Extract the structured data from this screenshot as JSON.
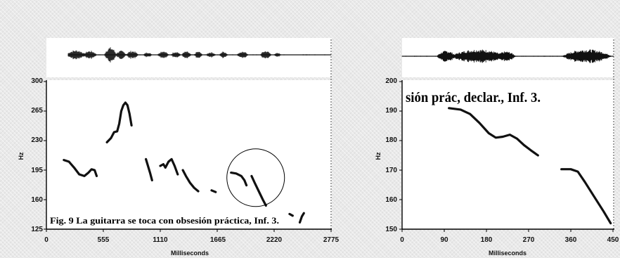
{
  "chart_data": [
    {
      "type": "line",
      "caption": "Fig. 9 La guitarra se toca con obsesión práctica, Inf. 3.",
      "xlabel": "Milliseconds",
      "ylabel": "Hz",
      "xlim": [
        0,
        2775
      ],
      "ylim": [
        125,
        300
      ],
      "xticks": [
        "0",
        "555",
        "1110",
        "1665",
        "2220",
        "2775"
      ],
      "yticks": [
        "300",
        "265",
        "230",
        "195",
        "160",
        "125"
      ],
      "highlight_circle_center_ms": 2040,
      "highlight_circle_center_hz": 186,
      "segments": [
        [
          [
            170,
            207
          ],
          [
            220,
            205
          ],
          [
            270,
            198
          ],
          [
            320,
            190
          ],
          [
            370,
            188
          ],
          [
            410,
            192
          ],
          [
            440,
            196
          ],
          [
            470,
            195
          ],
          [
            490,
            188
          ]
        ],
        [
          [
            590,
            228
          ],
          [
            630,
            233
          ],
          [
            660,
            240
          ],
          [
            690,
            241
          ],
          [
            710,
            250
          ],
          [
            730,
            265
          ],
          [
            750,
            272
          ],
          [
            770,
            275
          ],
          [
            790,
            272
          ],
          [
            810,
            262
          ],
          [
            830,
            248
          ]
        ],
        [
          [
            970,
            208
          ],
          [
            990,
            200
          ],
          [
            1010,
            192
          ],
          [
            1030,
            183
          ]
        ],
        [
          [
            1110,
            200
          ],
          [
            1140,
            202
          ],
          [
            1160,
            198
          ],
          [
            1190,
            205
          ],
          [
            1220,
            208
          ],
          [
            1250,
            200
          ],
          [
            1280,
            190
          ]
        ],
        [
          [
            1330,
            195
          ],
          [
            1360,
            188
          ],
          [
            1400,
            180
          ],
          [
            1440,
            174
          ],
          [
            1480,
            170
          ]
        ],
        [
          [
            1610,
            171
          ],
          [
            1650,
            169
          ]
        ],
        [
          [
            1800,
            192
          ],
          [
            1850,
            191
          ],
          [
            1900,
            188
          ],
          [
            1930,
            183
          ],
          [
            1950,
            177
          ]
        ],
        [
          [
            2000,
            188
          ],
          [
            2030,
            180
          ],
          [
            2070,
            170
          ],
          [
            2110,
            160
          ],
          [
            2140,
            153
          ]
        ],
        [
          [
            2370,
            143
          ],
          [
            2400,
            141
          ]
        ],
        [
          [
            2470,
            133
          ],
          [
            2490,
            140
          ],
          [
            2510,
            144
          ]
        ]
      ]
    },
    {
      "type": "line",
      "caption": "sión prác, declar., Inf. 3.",
      "xlabel": "Milliseconds",
      "ylabel": "Hz",
      "xlim": [
        0,
        450
      ],
      "ylim": [
        150,
        200
      ],
      "xticks": [
        "0",
        "90",
        "180",
        "270",
        "360",
        "450"
      ],
      "yticks": [
        "200",
        "190",
        "180",
        "170",
        "160",
        "150"
      ],
      "segments": [
        [
          [
            100,
            191
          ],
          [
            125,
            190.5
          ],
          [
            145,
            189
          ],
          [
            165,
            186
          ],
          [
            185,
            182.5
          ],
          [
            200,
            181
          ],
          [
            215,
            181.3
          ],
          [
            230,
            182
          ],
          [
            245,
            180.7
          ],
          [
            260,
            178.5
          ],
          [
            275,
            176.7
          ],
          [
            290,
            175
          ]
        ],
        [
          [
            340,
            170.3
          ],
          [
            360,
            170.3
          ],
          [
            375,
            169.5
          ],
          [
            390,
            166
          ],
          [
            410,
            161
          ],
          [
            430,
            156
          ],
          [
            445,
            152
          ]
        ]
      ]
    }
  ]
}
